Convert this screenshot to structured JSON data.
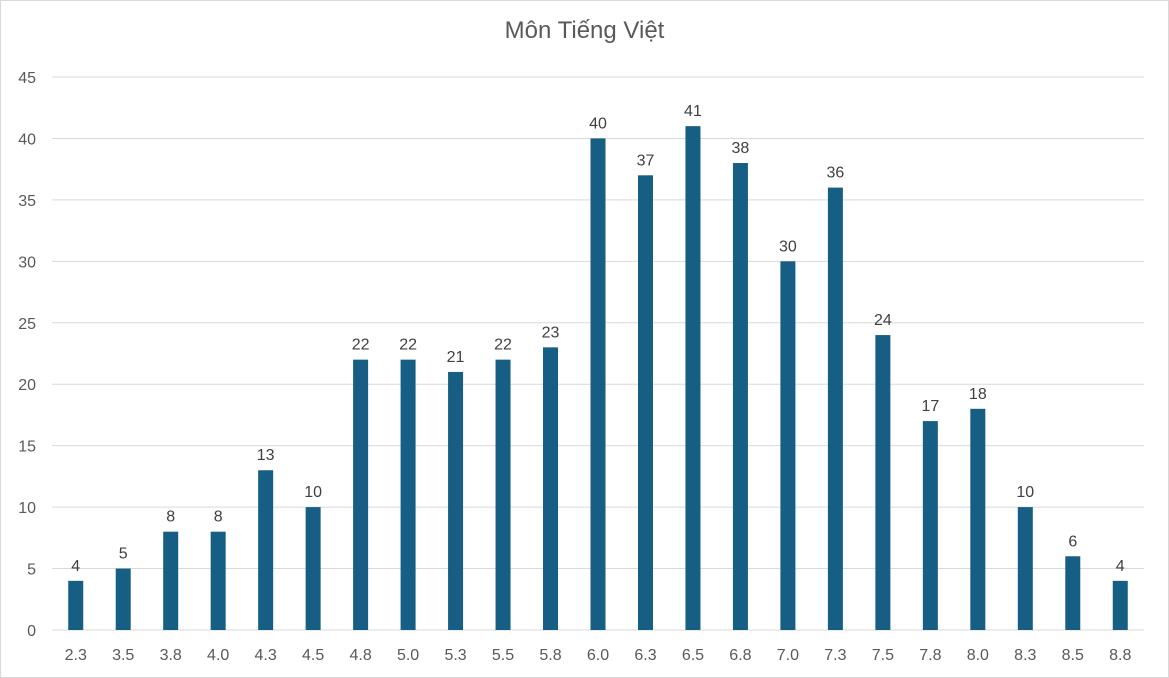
{
  "chart_data": {
    "type": "bar",
    "title": "Môn Tiếng Việt",
    "xlabel": "",
    "ylabel": "",
    "categories": [
      "2.3",
      "3.5",
      "3.8",
      "4.0",
      "4.3",
      "4.5",
      "4.8",
      "5.0",
      "5.3",
      "5.5",
      "5.8",
      "6.0",
      "6.3",
      "6.5",
      "6.8",
      "7.0",
      "7.3",
      "7.5",
      "7.8",
      "8.0",
      "8.3",
      "8.5",
      "8.8"
    ],
    "values": [
      4,
      5,
      8,
      8,
      13,
      10,
      22,
      22,
      21,
      22,
      23,
      40,
      37,
      41,
      38,
      30,
      36,
      24,
      17,
      18,
      10,
      6,
      4
    ],
    "ylim": [
      0,
      45
    ],
    "yticks": [
      0,
      5,
      10,
      15,
      20,
      25,
      30,
      35,
      40,
      45
    ],
    "grid": true,
    "legend": "none",
    "data_labels": true,
    "bar_color": "#165e83",
    "gridline_color": "#d9d9d9"
  }
}
